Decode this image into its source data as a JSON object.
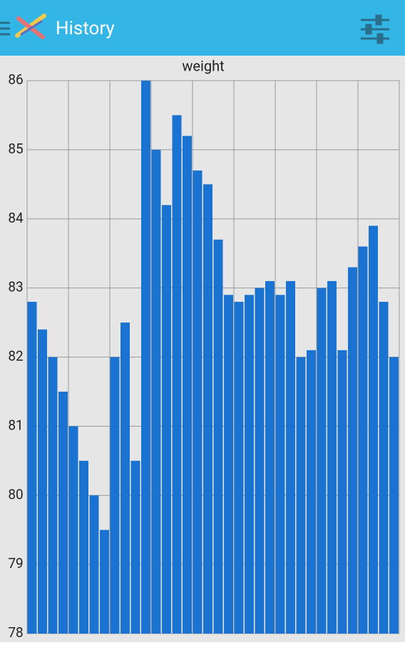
{
  "app_bar": {
    "title": "History"
  },
  "chart_data": {
    "type": "bar",
    "title": "weight",
    "categories": [
      null,
      null,
      null,
      null,
      null,
      null,
      null,
      null,
      null,
      null,
      null,
      null,
      null,
      null,
      null,
      null,
      null,
      null,
      null,
      null,
      null,
      null,
      null,
      null,
      null,
      null,
      null,
      null,
      null,
      null,
      null,
      null,
      null,
      null,
      null,
      null
    ],
    "values": [
      82.8,
      82.4,
      82.0,
      81.5,
      81.0,
      80.5,
      80.0,
      79.5,
      82.0,
      82.5,
      80.5,
      86.0,
      85.0,
      84.2,
      85.5,
      85.2,
      84.7,
      84.5,
      83.7,
      82.9,
      82.8,
      82.9,
      83.0,
      83.1,
      82.9,
      83.1,
      82.0,
      82.1,
      83.0,
      83.1,
      82.1,
      83.3,
      83.6,
      83.9,
      82.8,
      82.0
    ],
    "color": "#1a73d0",
    "ylim": [
      78,
      86
    ],
    "yticks": [
      78,
      79,
      80,
      81,
      82,
      83,
      84,
      85,
      86
    ],
    "grid": true
  }
}
